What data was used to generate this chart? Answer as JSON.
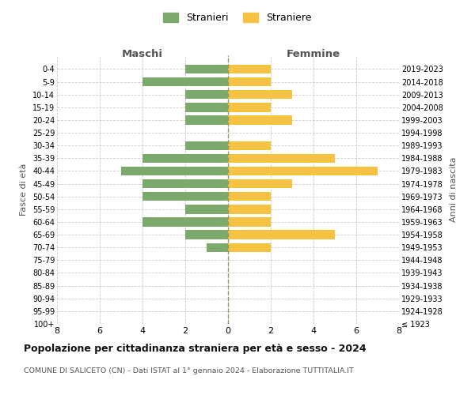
{
  "age_groups": [
    "0-4",
    "5-9",
    "10-14",
    "15-19",
    "20-24",
    "25-29",
    "30-34",
    "35-39",
    "40-44",
    "45-49",
    "50-54",
    "55-59",
    "60-64",
    "65-69",
    "70-74",
    "75-79",
    "80-84",
    "85-89",
    "90-94",
    "95-99",
    "100+"
  ],
  "birth_years": [
    "2019-2023",
    "2014-2018",
    "2009-2013",
    "2004-2008",
    "1999-2003",
    "1994-1998",
    "1989-1993",
    "1984-1988",
    "1979-1983",
    "1974-1978",
    "1969-1973",
    "1964-1968",
    "1959-1963",
    "1954-1958",
    "1949-1953",
    "1944-1948",
    "1939-1943",
    "1934-1938",
    "1929-1933",
    "1924-1928",
    "≤ 1923"
  ],
  "males": [
    2,
    4,
    2,
    2,
    2,
    0,
    2,
    4,
    5,
    4,
    4,
    2,
    4,
    2,
    1,
    0,
    0,
    0,
    0,
    0,
    0
  ],
  "females": [
    2,
    2,
    3,
    2,
    3,
    0,
    2,
    5,
    7,
    3,
    2,
    2,
    2,
    5,
    2,
    0,
    0,
    0,
    0,
    0,
    0
  ],
  "male_color": "#7caa6d",
  "female_color": "#f5c242",
  "background_color": "#ffffff",
  "grid_color": "#cccccc",
  "center_line_color": "#999966",
  "title": "Popolazione per cittadinanza straniera per età e sesso - 2024",
  "subtitle": "COMUNE DI SALICETO (CN) - Dati ISTAT al 1° gennaio 2024 - Elaborazione TUTTITALIA.IT",
  "xlabel_left": "Maschi",
  "xlabel_right": "Femmine",
  "ylabel_left": "Fasce di età",
  "ylabel_right": "Anni di nascita",
  "legend_male": "Stranieri",
  "legend_female": "Straniere",
  "xlim": 8,
  "xticks": [
    -8,
    -6,
    -4,
    -2,
    0,
    2,
    4,
    6,
    8
  ]
}
